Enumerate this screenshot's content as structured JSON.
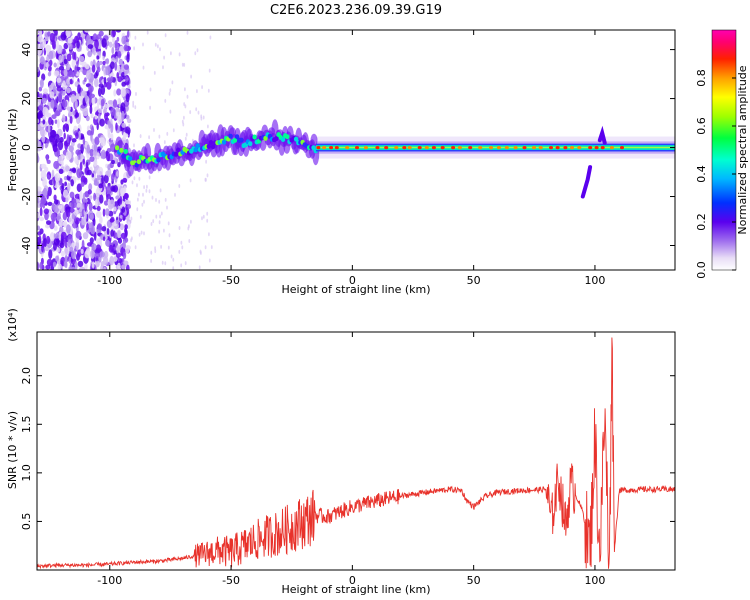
{
  "title": "C2E6.2023.236.09.39.G19",
  "chart_data": [
    {
      "type": "heatmap",
      "xlabel": "Height of straight line (km)",
      "ylabel": "Frequency (Hz)",
      "xlim": [
        -130,
        133
      ],
      "ylim": [
        -50,
        48
      ],
      "xticks": [
        "-100",
        "-50",
        "0",
        "50",
        "100"
      ],
      "xtick_values": [
        -100,
        -50,
        0,
        50,
        100
      ],
      "yticks": [
        "-40",
        "-20",
        "0",
        "20",
        "40"
      ],
      "ytick_values": [
        -40,
        -20,
        0,
        20,
        40
      ],
      "colorbar": {
        "label": "Normalized spectral amplitude",
        "range": [
          0,
          1
        ],
        "ticks": [
          "0.0",
          "0.2",
          "0.4",
          "0.6",
          "0.8"
        ],
        "tick_values": [
          0.0,
          0.2,
          0.4,
          0.6,
          0.8
        ],
        "colormap": "rainbow (white/lavender → purple → blue → cyan → green → yellow → orange → red → magenta)"
      },
      "ridge": {
        "x": [
          -97,
          -90,
          -80,
          -70,
          -60,
          -50,
          -45,
          -40,
          -35,
          -30,
          -25,
          -20,
          -15,
          -10,
          0,
          20,
          50,
          80,
          95,
          100,
          103,
          133
        ],
        "y": [
          0,
          -6,
          -4,
          -2,
          1,
          4,
          2,
          3,
          5,
          4,
          3,
          1,
          0,
          0,
          0,
          0,
          0,
          0,
          0,
          0,
          2,
          0
        ]
      },
      "features": [
        {
          "x": [
            95,
            97,
            98
          ],
          "y": [
            -20,
            -13,
            -8
          ],
          "note": "short descending branch"
        },
        {
          "x": [
            102,
            103,
            104
          ],
          "y": [
            3,
            6,
            2
          ],
          "note": "spike"
        }
      ]
    },
    {
      "type": "line",
      "xlabel": "Height of straight line (km)",
      "ylabel": "SNR (10 * v/v)",
      "scale_label": "(x10⁴)",
      "xlim": [
        -130,
        133
      ],
      "ylim": [
        0,
        2.45
      ],
      "xticks": [
        "-100",
        "-50",
        "0",
        "50",
        "100"
      ],
      "xtick_values": [
        -100,
        -50,
        0,
        50,
        100
      ],
      "yticks": [
        "0.5",
        "1.0",
        "1.5",
        "2.0"
      ],
      "ytick_values": [
        0.5,
        1.0,
        1.5,
        2.0
      ],
      "series": [
        {
          "color": "#e8322b",
          "x": [
            -130,
            -120,
            -110,
            -100,
            -90,
            -80,
            -70,
            -60,
            -55,
            -50,
            -45,
            -40,
            -35,
            -30,
            -25,
            -20,
            -15,
            -10,
            -5,
            0,
            10,
            20,
            30,
            40,
            45,
            47,
            50,
            55,
            60,
            70,
            80,
            82,
            85,
            88,
            90,
            95,
            98,
            100,
            102,
            104,
            106,
            107,
            108,
            110,
            120,
            133
          ],
          "y": [
            0.04,
            0.05,
            0.05,
            0.06,
            0.08,
            0.09,
            0.12,
            0.17,
            0.2,
            0.18,
            0.24,
            0.3,
            0.35,
            0.38,
            0.44,
            0.5,
            0.56,
            0.55,
            0.6,
            0.65,
            0.71,
            0.76,
            0.8,
            0.83,
            0.82,
            0.72,
            0.65,
            0.76,
            0.8,
            0.82,
            0.83,
            0.5,
            0.95,
            0.45,
            0.9,
            0.6,
            0.2,
            1.4,
            0.1,
            1.6,
            0.0,
            2.45,
            0.2,
            0.82,
            0.83,
            0.83
          ]
        }
      ]
    }
  ]
}
